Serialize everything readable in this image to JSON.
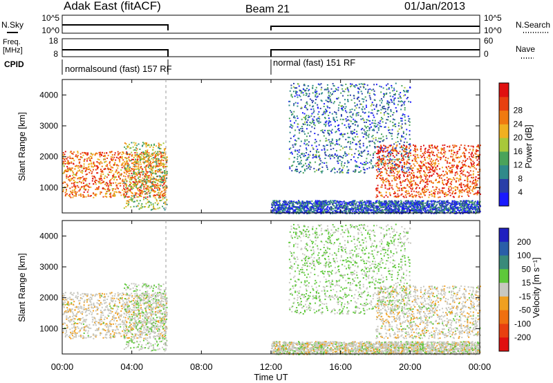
{
  "header": {
    "title": "Adak East (fitACF)",
    "beam": "Beam 21",
    "date": "01/Jan/2013"
  },
  "summary_panels": {
    "nsky_label": "N.Sky",
    "nsky_ticks": [
      "10^5",
      "10^0"
    ],
    "nsearch_label": "N.Search",
    "nsearch_ticks": [
      "10^5",
      "10^0"
    ],
    "freq_label_line1": "Freq.",
    "freq_label_line2": "[MHz]",
    "freq_ticks": [
      "18",
      "8"
    ],
    "nave_label": "Nave",
    "nave_ticks": [
      "60",
      "0"
    ],
    "cpid_label": "CPID",
    "cpid_segments": [
      {
        "label": "normalsound (fast) 157 RF",
        "start_hour": 0,
        "end_hour": 6
      },
      {
        "label": "normal (fast) 151 RF",
        "start_hour": 12,
        "end_hour": 24
      }
    ]
  },
  "power_panel": {
    "ylabel": "Slant Range [km]",
    "yticks": [
      "1000",
      "2000",
      "3000",
      "4000"
    ],
    "colorbar_label": "Power [dB]",
    "colorbar_ticks": [
      "4",
      "8",
      "12",
      "16",
      "20",
      "24",
      "28"
    ],
    "colorbar_colors": [
      "#1a1aff",
      "#2a3ea8",
      "#2f8a8a",
      "#4aa35a",
      "#a8c83a",
      "#f0b020",
      "#f07a10",
      "#e84010",
      "#e01010"
    ]
  },
  "velocity_panel": {
    "ylabel": "Slant Range [km]",
    "yticks": [
      "1000",
      "2000",
      "3000",
      "4000"
    ],
    "colorbar_label": "Velocity [m s⁻¹]",
    "colorbar_ticks": [
      "200",
      "100",
      "50",
      "15",
      "-15",
      "-50",
      "-100",
      "-200"
    ],
    "colorbar_colors": [
      "#2020c0",
      "#2a5ea8",
      "#3a8a7a",
      "#5ec83a",
      "#c8c8c0",
      "#f0a020",
      "#f07010",
      "#e84010",
      "#e01010"
    ]
  },
  "xaxis": {
    "ticks": [
      "00:00",
      "04:00",
      "08:00",
      "12:00",
      "16:00",
      "20:00",
      "00:00"
    ],
    "label": "Time UT"
  },
  "chart_data": {
    "type": "heatmap",
    "title": "Adak East (fitACF)",
    "subtitle": "Beam 21",
    "xlabel": "Time UT",
    "xlim_hours": [
      0,
      24
    ],
    "ylim_km": [
      180,
      4500
    ],
    "data_gaps_hours": [
      [
        6,
        12
      ]
    ],
    "power_db_range": [
      0,
      32
    ],
    "velocity_range_ms": [
      -250,
      250
    ],
    "echo_regions": [
      {
        "name": "early_band",
        "start_hour": 0,
        "end_hour": 6,
        "range_km": [
          700,
          2200
        ],
        "power_db": 24,
        "velocity_ms": -10
      },
      {
        "name": "early_rising_arc",
        "start_hour": 3.5,
        "end_hour": 6,
        "range_km": [
          300,
          2500
        ],
        "power_db": 16,
        "velocity_ms": 20
      },
      {
        "name": "late_descending_arc",
        "start_hour": 13,
        "end_hour": 20,
        "range_km": [
          1500,
          4400
        ],
        "power_db": 8,
        "velocity_ms": 30
      },
      {
        "name": "evening_band",
        "start_hour": 18,
        "end_hour": 24,
        "range_km": [
          700,
          2400
        ],
        "power_db": 26,
        "velocity_ms": -5
      },
      {
        "name": "near_range_ground",
        "start_hour": 12,
        "end_hour": 24,
        "range_km": [
          180,
          600
        ],
        "power_db": 6,
        "velocity_ms": 0
      }
    ]
  }
}
